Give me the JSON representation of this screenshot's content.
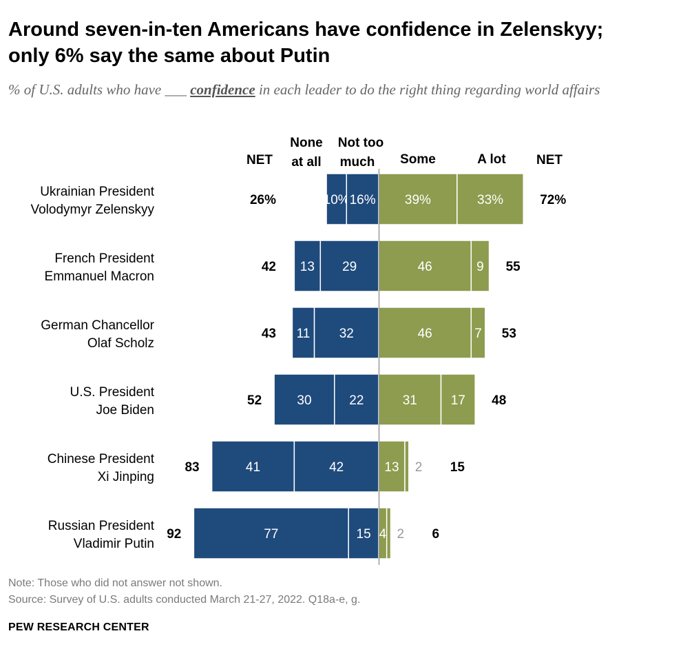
{
  "title": "Around seven-in-ten Americans have confidence in Zelenskyy; only 6% say the same about Putin",
  "subtitle": {
    "before": "% of U.S. adults who have ___ ",
    "emphasis": "confidence",
    "after": " in each leader to do the right thing regarding world affairs"
  },
  "headers": {
    "net_left": "NET",
    "none_line1": "None",
    "none_line2": "at all",
    "nottoo_line1": "Not too",
    "nottoo_line2": "much",
    "some": "Some",
    "alot": "A lot",
    "net_right": "NET"
  },
  "colors": {
    "negative": "#1f4a7c",
    "positive": "#8d9c4e",
    "axis": "#999999",
    "label_light": "#ffffff",
    "label_outside": "#999999"
  },
  "chart_data": {
    "type": "bar",
    "orientation": "horizontal-diverging",
    "units": "%",
    "categories": [
      [
        "Ukrainian President",
        "Volodymyr Zelenskyy"
      ],
      [
        "French President",
        "Emmanuel Macron"
      ],
      [
        "German Chancellor",
        "Olaf Scholz"
      ],
      [
        "U.S. President",
        "Joe Biden"
      ],
      [
        "Chinese President",
        "Xi Jinping"
      ],
      [
        "Russian President",
        "Vladimir Putin"
      ]
    ],
    "series": [
      {
        "name": "None at all",
        "side": "negative",
        "values": [
          10,
          13,
          11,
          30,
          41,
          77
        ],
        "labels": [
          "10%",
          "13",
          "11",
          "30",
          "41",
          "77"
        ]
      },
      {
        "name": "Not too much",
        "side": "negative",
        "values": [
          16,
          29,
          32,
          22,
          42,
          15
        ],
        "labels": [
          "16%",
          "29",
          "32",
          "22",
          "42",
          "15"
        ]
      },
      {
        "name": "Some",
        "side": "positive",
        "values": [
          39,
          46,
          46,
          31,
          13,
          4
        ],
        "labels": [
          "39%",
          "46",
          "46",
          "31",
          "13",
          "4"
        ]
      },
      {
        "name": "A lot",
        "side": "positive",
        "values": [
          33,
          9,
          7,
          17,
          2,
          2
        ],
        "labels": [
          "33%",
          "9",
          "7",
          "17",
          "2",
          "2"
        ]
      }
    ],
    "net_negative": {
      "values": [
        26,
        42,
        43,
        52,
        83,
        92
      ],
      "labels": [
        "26%",
        "42",
        "43",
        "52",
        "83",
        "92"
      ]
    },
    "net_positive": {
      "values": [
        72,
        55,
        53,
        48,
        15,
        6
      ],
      "labels": [
        "72%",
        "55",
        "53",
        "48",
        "15",
        "6"
      ]
    }
  },
  "note": "Note: Those who did not answer not shown.",
  "source": "Source: Survey of U.S. adults conducted March 21-27, 2022. Q18a-e, g.",
  "org": "PEW RESEARCH CENTER"
}
